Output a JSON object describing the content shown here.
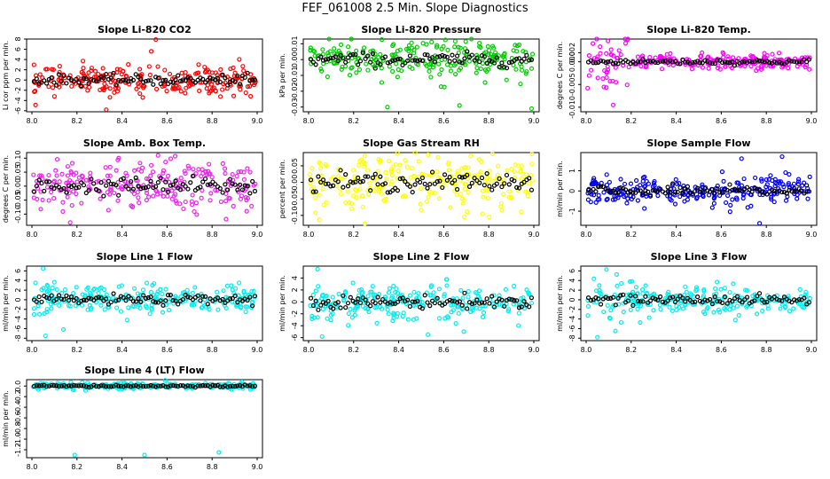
{
  "page_title": "FEF_061008  2.5 Min. Slope Diagnostics",
  "chart_data": [
    {
      "type": "scatter",
      "title": "Slope Li-820 CO2",
      "ylabel": "Li cor ppm per min.",
      "color": "#ff0000",
      "xlim": [
        8.0,
        9.0
      ],
      "ylim": [
        -6.2,
        8.0
      ],
      "yticks": [
        -6,
        -4,
        -2,
        0,
        2,
        4,
        6,
        8
      ],
      "xticks": [
        8.0,
        8.2,
        8.4,
        8.6,
        8.8,
        9.0
      ],
      "xtick_labels": [
        "8.0",
        "8.2",
        "8.4",
        "8.6",
        "8.8",
        "9.0"
      ],
      "ytick_labels": [
        "-6",
        "-4",
        "-2",
        "0",
        "2",
        "4",
        "6",
        "8"
      ],
      "spread": 1.4,
      "outliers": [
        [
          8.55,
          7.9
        ],
        [
          8.33,
          -5.8
        ],
        [
          8.53,
          5.6
        ],
        [
          8.1,
          -3.2
        ]
      ]
    },
    {
      "type": "scatter",
      "title": "Slope Li-820 Pressure",
      "ylabel": "kPa per min.",
      "color": "#00cc00",
      "xlim": [
        8.0,
        9.0
      ],
      "ylim": [
        -0.033,
        0.013
      ],
      "yticks": [
        -0.03,
        -0.02,
        -0.01,
        0.0,
        0.01
      ],
      "xticks": [
        8.0,
        8.2,
        8.4,
        8.6,
        8.8,
        9.0
      ],
      "xtick_labels": [
        "8.0",
        "8.2",
        "8.4",
        "8.6",
        "8.8",
        "9.0"
      ],
      "ytick_labels": [
        "-0.03",
        "-0.02",
        "-0.01",
        "0.00",
        "0.01"
      ],
      "spread": 0.006,
      "outliers": [
        [
          8.35,
          -0.03
        ],
        [
          8.67,
          -0.029
        ],
        [
          8.99,
          -0.031
        ]
      ]
    },
    {
      "type": "scatter",
      "title": "Slope Li-820 Temp.",
      "ylabel": "degrees C per min.",
      "color": "#ff00ff",
      "xlim": [
        8.0,
        9.0
      ],
      "ylim": [
        -0.011,
        0.005
      ],
      "yticks": [
        -0.01,
        -0.005,
        0.0,
        0.002
      ],
      "xticks": [
        8.0,
        8.2,
        8.4,
        8.6,
        8.8,
        9.0
      ],
      "xtick_labels": [
        "8.0",
        "8.2",
        "8.4",
        "8.6",
        "8.8",
        "9.0"
      ],
      "ytick_labels": [
        "-0.010",
        "-0.005",
        "0.000",
        "0.002"
      ],
      "spread": 0.0008,
      "outliers": [
        [
          8.12,
          -0.0095
        ],
        [
          8.03,
          0.004
        ]
      ]
    },
    {
      "type": "scatter",
      "title": "Slope Amb. Box Temp.",
      "ylabel": "degrees C per min.",
      "color": "#ee22ee",
      "xlim": [
        8.0,
        9.0
      ],
      "ylim": [
        -0.14,
        0.12
      ],
      "yticks": [
        -0.1,
        -0.05,
        0.0,
        0.05,
        0.1
      ],
      "xticks": [
        8.0,
        8.2,
        8.4,
        8.6,
        8.8,
        9.0
      ],
      "xtick_labels": [
        "8.0",
        "8.2",
        "8.4",
        "8.6",
        "8.8",
        "9.0"
      ],
      "ytick_labels": [
        "-0.10",
        "-0.05",
        "0.00",
        "0.05",
        "0.10"
      ],
      "spread": 0.045,
      "outliers": [
        [
          8.17,
          -0.13
        ],
        [
          8.56,
          0.11
        ]
      ]
    },
    {
      "type": "scatter",
      "title": "Slope Gas Stream RH",
      "ylabel": "percent per min.",
      "color": "#ffff00",
      "xlim": [
        8.0,
        9.0
      ],
      "ylim": [
        -0.13,
        0.09
      ],
      "yticks": [
        -0.1,
        -0.05,
        0.0,
        0.05
      ],
      "xticks": [
        8.0,
        8.2,
        8.4,
        8.6,
        8.8,
        9.0
      ],
      "xtick_labels": [
        "8.0",
        "8.2",
        "8.4",
        "8.6",
        "8.8",
        "9.0"
      ],
      "ytick_labels": [
        "-0.10",
        "-0.05",
        "0.00",
        "0.05"
      ],
      "spread": 0.04,
      "outliers": [
        [
          8.25,
          -0.125
        ],
        [
          8.72,
          0.08
        ]
      ]
    },
    {
      "type": "scatter",
      "title": "Slope Sample Flow",
      "ylabel": "ml/min per min.",
      "color": "#0000ee",
      "xlim": [
        8.0,
        9.0
      ],
      "ylim": [
        -1.7,
        1.9
      ],
      "yticks": [
        -1,
        0,
        1
      ],
      "xticks": [
        8.0,
        8.2,
        8.4,
        8.6,
        8.8,
        9.0
      ],
      "xtick_labels": [
        "8.0",
        "8.2",
        "8.4",
        "8.6",
        "8.8",
        "9.0"
      ],
      "ytick_labels": [
        "-1",
        "0",
        "1"
      ],
      "spread": 0.35,
      "outliers": [
        [
          8.77,
          -1.6
        ],
        [
          8.87,
          1.7
        ],
        [
          8.69,
          1.6
        ]
      ]
    },
    {
      "type": "scatter",
      "title": "Slope Line 1 Flow",
      "ylabel": "ml/min per min.",
      "color": "#00eeee",
      "xlim": [
        8.0,
        9.0
      ],
      "ylim": [
        -8.5,
        7.0
      ],
      "yticks": [
        -8,
        -6,
        -4,
        -2,
        0,
        2,
        4,
        6
      ],
      "xticks": [
        8.0,
        8.2,
        8.4,
        8.6,
        8.8,
        9.0
      ],
      "xtick_labels": [
        "8.0",
        "8.2",
        "8.4",
        "8.6",
        "8.8",
        "9.0"
      ],
      "ytick_labels": [
        "-8",
        "-6",
        "-4",
        "-2",
        "0",
        "2",
        "4",
        "6"
      ],
      "spread": 1.4,
      "outliers": [
        [
          8.06,
          -7.5
        ],
        [
          8.05,
          6.5
        ],
        [
          8.14,
          -6.2
        ]
      ]
    },
    {
      "type": "scatter",
      "title": "Slope Line 2 Flow",
      "ylabel": "ml/min per min.",
      "color": "#00eeee",
      "xlim": [
        8.0,
        9.0
      ],
      "ylim": [
        -6.5,
        6.0
      ],
      "yticks": [
        -6,
        -4,
        -2,
        0,
        2,
        4
      ],
      "xticks": [
        8.0,
        8.2,
        8.4,
        8.6,
        8.8,
        9.0
      ],
      "xtick_labels": [
        "8.0",
        "8.2",
        "8.4",
        "8.6",
        "8.8",
        "9.0"
      ],
      "ytick_labels": [
        "-6",
        "-4",
        "-2",
        "0",
        "2",
        "4"
      ],
      "spread": 1.5,
      "outliers": [
        [
          8.06,
          -5.8
        ],
        [
          8.04,
          5.5
        ],
        [
          8.53,
          -5.5
        ]
      ]
    },
    {
      "type": "scatter",
      "title": "Slope Line 3 Flow",
      "ylabel": "ml/min per min.",
      "color": "#00eeee",
      "xlim": [
        8.0,
        9.0
      ],
      "ylim": [
        -8.5,
        7.0
      ],
      "yticks": [
        -8,
        -6,
        -4,
        -2,
        0,
        2,
        4,
        6
      ],
      "xticks": [
        8.0,
        8.2,
        8.4,
        8.6,
        8.8,
        9.0
      ],
      "xtick_labels": [
        "8.0",
        "8.2",
        "8.4",
        "8.6",
        "8.8",
        "9.0"
      ],
      "ytick_labels": [
        "-8",
        "-6",
        "-4",
        "-2",
        "0",
        "2",
        "4",
        "6"
      ],
      "spread": 1.4,
      "outliers": [
        [
          8.05,
          -7.8
        ],
        [
          8.09,
          6.3
        ],
        [
          8.13,
          -6.5
        ]
      ]
    },
    {
      "type": "scatter",
      "title": "Slope Line 4 (LT) Flow",
      "ylabel": "ml/min per min.",
      "color": "#00eeee",
      "xlim": [
        8.0,
        9.0
      ],
      "ylim": [
        -1.35,
        0.12
      ],
      "yticks": [
        -1.2,
        -1.0,
        -0.8,
        -0.6,
        -0.4,
        -0.2,
        0.0
      ],
      "xticks": [
        8.0,
        8.2,
        8.4,
        8.6,
        8.8,
        9.0
      ],
      "xtick_labels": [
        "8.0",
        "8.2",
        "8.4",
        "8.6",
        "8.8",
        "9.0"
      ],
      "ytick_labels": [
        "-1.2",
        "-1.0",
        "-0.8",
        "-0.6",
        "-0.4",
        "-0.2",
        "0.0"
      ],
      "spread": 0.03,
      "outliers": [
        [
          8.19,
          -1.3
        ],
        [
          8.5,
          -1.3
        ],
        [
          8.83,
          -1.25
        ]
      ]
    }
  ]
}
